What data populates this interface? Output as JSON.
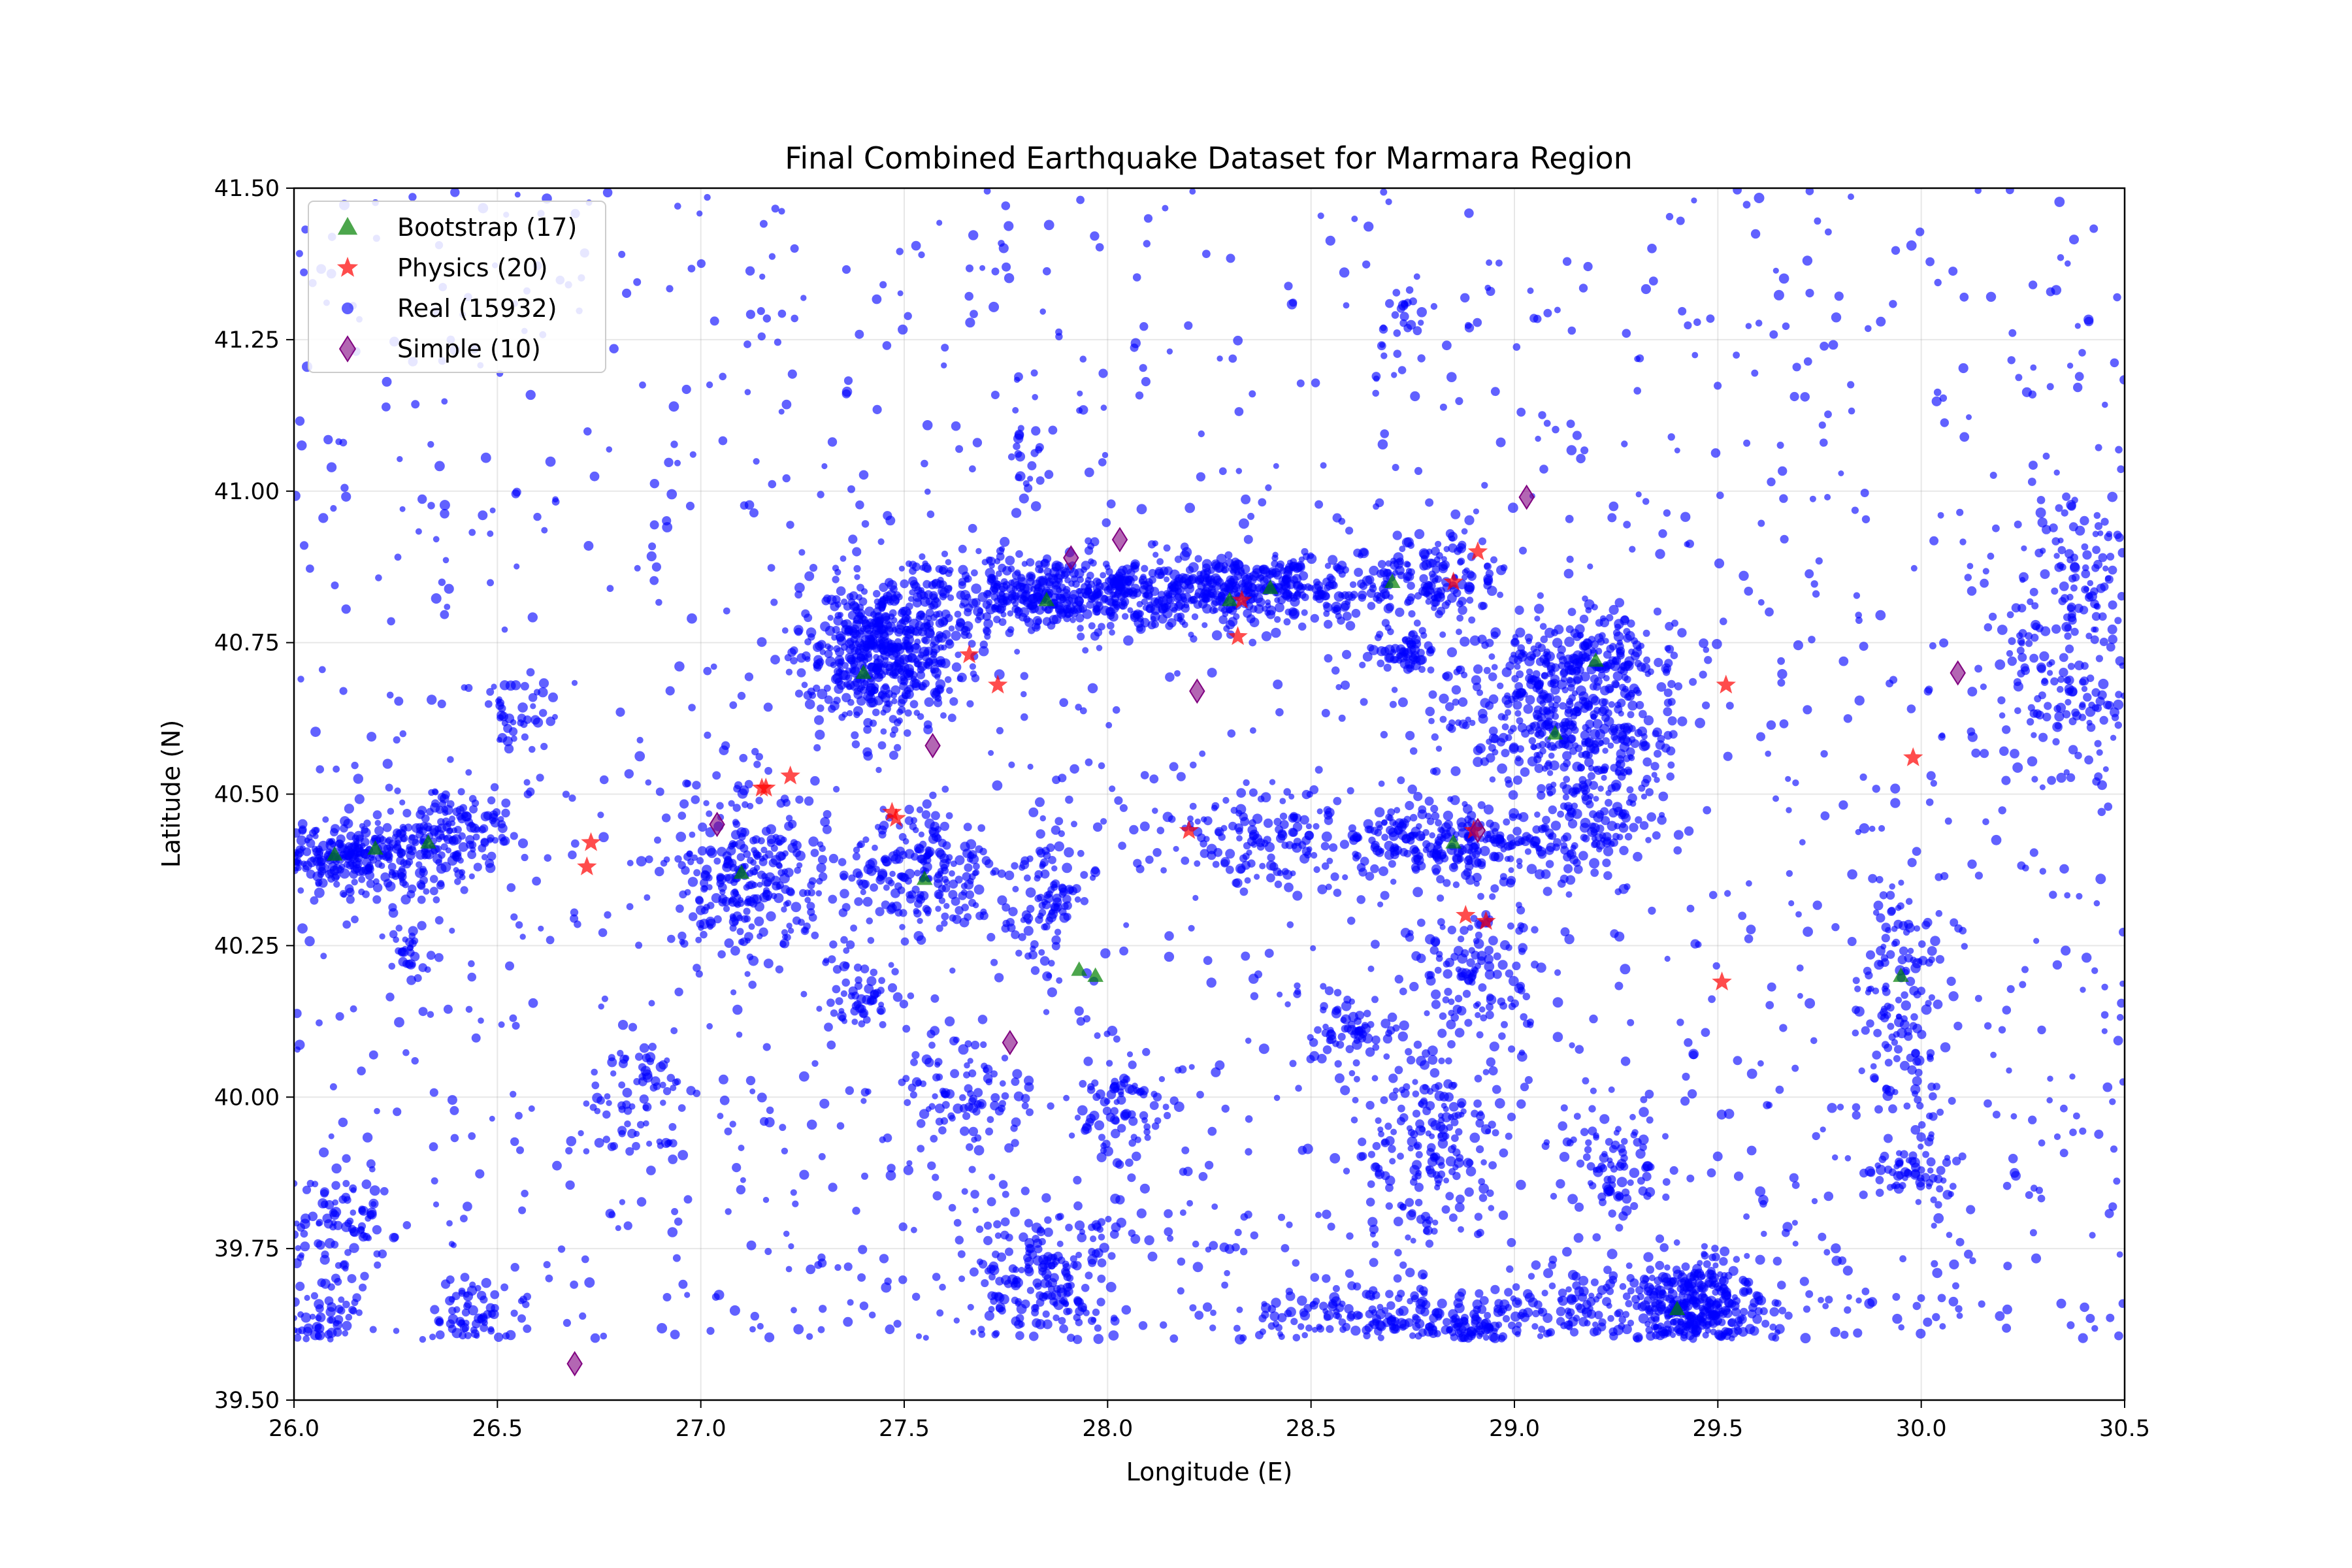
{
  "chart_data": {
    "type": "scatter",
    "title": "Final Combined Earthquake Dataset for Marmara Region",
    "xlabel": "Longitude (E)",
    "ylabel": "Latitude (N)",
    "xlim": [
      26.0,
      30.5
    ],
    "ylim": [
      39.5,
      41.5
    ],
    "xticks": [
      26.0,
      26.5,
      27.0,
      27.5,
      28.0,
      28.5,
      29.0,
      29.5,
      30.0,
      30.5
    ],
    "xtick_labels": [
      "26.0",
      "26.5",
      "27.0",
      "27.5",
      "28.0",
      "28.5",
      "29.0",
      "29.5",
      "30.0",
      "30.5"
    ],
    "yticks": [
      39.5,
      39.75,
      40.0,
      40.25,
      40.5,
      40.75,
      41.0,
      41.25,
      41.5
    ],
    "ytick_labels": [
      "39.50",
      "39.75",
      "40.00",
      "40.25",
      "40.50",
      "40.75",
      "41.00",
      "41.25",
      "41.50"
    ],
    "grid": true,
    "legend_position": "upper-left",
    "series": [
      {
        "name": "Real (15932)",
        "marker": "circle",
        "color": "#0000ff",
        "clusters": [
          {
            "x": 26.15,
            "y": 40.4,
            "sx": 0.12,
            "sy": 0.03,
            "n": 320
          },
          {
            "x": 26.4,
            "y": 40.44,
            "sx": 0.08,
            "sy": 0.04,
            "n": 120
          },
          {
            "x": 27.45,
            "y": 40.73,
            "sx": 0.1,
            "sy": 0.06,
            "n": 520
          },
          {
            "x": 27.85,
            "y": 40.83,
            "sx": 0.18,
            "sy": 0.03,
            "n": 450
          },
          {
            "x": 28.35,
            "y": 40.84,
            "sx": 0.18,
            "sy": 0.03,
            "n": 420
          },
          {
            "x": 28.8,
            "y": 40.85,
            "sx": 0.08,
            "sy": 0.04,
            "n": 140
          },
          {
            "x": 29.15,
            "y": 40.72,
            "sx": 0.14,
            "sy": 0.04,
            "n": 260
          },
          {
            "x": 29.1,
            "y": 40.61,
            "sx": 0.15,
            "sy": 0.04,
            "n": 260
          },
          {
            "x": 29.2,
            "y": 40.48,
            "sx": 0.07,
            "sy": 0.06,
            "n": 150
          },
          {
            "x": 28.85,
            "y": 40.42,
            "sx": 0.17,
            "sy": 0.03,
            "n": 280
          },
          {
            "x": 27.12,
            "y": 40.36,
            "sx": 0.1,
            "sy": 0.06,
            "n": 260
          },
          {
            "x": 27.55,
            "y": 40.37,
            "sx": 0.1,
            "sy": 0.05,
            "n": 200
          },
          {
            "x": 27.85,
            "y": 40.32,
            "sx": 0.05,
            "sy": 0.06,
            "n": 100
          },
          {
            "x": 29.45,
            "y": 39.65,
            "sx": 0.08,
            "sy": 0.04,
            "n": 380
          },
          {
            "x": 27.85,
            "y": 39.7,
            "sx": 0.09,
            "sy": 0.06,
            "n": 200
          },
          {
            "x": 28.8,
            "y": 39.92,
            "sx": 0.08,
            "sy": 0.08,
            "n": 180
          },
          {
            "x": 28.9,
            "y": 40.2,
            "sx": 0.08,
            "sy": 0.06,
            "n": 120
          },
          {
            "x": 28.65,
            "y": 39.63,
            "sx": 0.14,
            "sy": 0.03,
            "n": 160
          },
          {
            "x": 28.9,
            "y": 39.62,
            "sx": 0.06,
            "sy": 0.02,
            "n": 80
          },
          {
            "x": 29.15,
            "y": 39.65,
            "sx": 0.1,
            "sy": 0.04,
            "n": 110
          },
          {
            "x": 29.95,
            "y": 40.2,
            "sx": 0.05,
            "sy": 0.12,
            "n": 130
          },
          {
            "x": 30.35,
            "y": 40.68,
            "sx": 0.1,
            "sy": 0.1,
            "n": 150
          },
          {
            "x": 30.4,
            "y": 40.88,
            "sx": 0.06,
            "sy": 0.06,
            "n": 80
          },
          {
            "x": 30.0,
            "y": 39.88,
            "sx": 0.06,
            "sy": 0.03,
            "n": 60
          },
          {
            "x": 29.25,
            "y": 39.9,
            "sx": 0.07,
            "sy": 0.04,
            "n": 80
          },
          {
            "x": 26.1,
            "y": 39.8,
            "sx": 0.07,
            "sy": 0.05,
            "n": 90
          },
          {
            "x": 26.05,
            "y": 39.63,
            "sx": 0.06,
            "sy": 0.03,
            "n": 70
          },
          {
            "x": 26.42,
            "y": 39.63,
            "sx": 0.05,
            "sy": 0.03,
            "n": 70
          },
          {
            "x": 26.85,
            "y": 40.0,
            "sx": 0.06,
            "sy": 0.07,
            "n": 70
          },
          {
            "x": 28.05,
            "y": 39.98,
            "sx": 0.06,
            "sy": 0.04,
            "n": 80
          },
          {
            "x": 27.65,
            "y": 40.0,
            "sx": 0.07,
            "sy": 0.05,
            "n": 80
          },
          {
            "x": 28.6,
            "y": 40.1,
            "sx": 0.05,
            "sy": 0.03,
            "n": 60
          },
          {
            "x": 27.4,
            "y": 40.16,
            "sx": 0.05,
            "sy": 0.03,
            "n": 50
          },
          {
            "x": 28.35,
            "y": 40.42,
            "sx": 0.1,
            "sy": 0.04,
            "n": 100
          },
          {
            "x": 28.73,
            "y": 40.74,
            "sx": 0.04,
            "sy": 0.02,
            "n": 50
          },
          {
            "x": 27.8,
            "y": 41.08,
            "sx": 0.03,
            "sy": 0.05,
            "n": 25
          },
          {
            "x": 28.72,
            "y": 41.27,
            "sx": 0.03,
            "sy": 0.04,
            "n": 25
          },
          {
            "x": 26.55,
            "y": 40.63,
            "sx": 0.05,
            "sy": 0.04,
            "n": 40
          },
          {
            "x": 26.28,
            "y": 40.25,
            "sx": 0.04,
            "sy": 0.03,
            "n": 30
          }
        ],
        "background_points": 1800,
        "background_xrange": [
          26.0,
          30.5
        ],
        "background_yrange": [
          39.6,
          41.5
        ]
      },
      {
        "name": "Physics (20)",
        "marker": "star",
        "color": "#ff0000",
        "points": [
          [
            27.16,
            40.51
          ],
          [
            27.22,
            40.53
          ],
          [
            26.73,
            40.42
          ],
          [
            26.72,
            40.38
          ],
          [
            27.47,
            40.47
          ],
          [
            27.66,
            40.73
          ],
          [
            27.73,
            40.68
          ],
          [
            28.2,
            40.44
          ],
          [
            28.32,
            40.76
          ],
          [
            28.85,
            40.85
          ],
          [
            28.91,
            40.9
          ],
          [
            28.88,
            40.3
          ],
          [
            28.93,
            40.29
          ],
          [
            29.52,
            40.68
          ],
          [
            29.51,
            40.19
          ],
          [
            29.98,
            40.56
          ],
          [
            28.33,
            40.82
          ],
          [
            27.15,
            40.51
          ],
          [
            27.48,
            40.46
          ],
          [
            28.9,
            40.44
          ]
        ]
      },
      {
        "name": "Simple (10)",
        "marker": "diamond",
        "color": "#800080",
        "points": [
          [
            26.69,
            39.56
          ],
          [
            27.04,
            40.45
          ],
          [
            27.57,
            40.58
          ],
          [
            27.76,
            40.09
          ],
          [
            27.91,
            40.89
          ],
          [
            28.03,
            40.92
          ],
          [
            28.22,
            40.67
          ],
          [
            29.03,
            40.99
          ],
          [
            28.91,
            40.44
          ],
          [
            30.09,
            40.7
          ]
        ]
      },
      {
        "name": "Bootstrap (17)",
        "marker": "triangle",
        "color": "#008000",
        "points": [
          [
            26.33,
            40.42
          ],
          [
            27.97,
            40.2
          ],
          [
            27.93,
            40.21
          ],
          [
            28.3,
            40.82
          ],
          [
            26.1,
            40.4
          ],
          [
            26.2,
            40.41
          ],
          [
            27.4,
            40.7
          ],
          [
            28.7,
            40.85
          ],
          [
            29.1,
            40.6
          ],
          [
            29.4,
            39.65
          ],
          [
            27.85,
            40.82
          ],
          [
            28.4,
            40.84
          ],
          [
            29.2,
            40.72
          ],
          [
            27.1,
            40.37
          ],
          [
            27.55,
            40.36
          ],
          [
            28.85,
            40.42
          ],
          [
            29.95,
            40.2
          ]
        ]
      }
    ],
    "legend": [
      {
        "label": "Bootstrap (17)",
        "marker": "triangle",
        "color": "#008000"
      },
      {
        "label": "Physics (20)",
        "marker": "star",
        "color": "#ff0000"
      },
      {
        "label": "Real (15932)",
        "marker": "circle",
        "color": "#0000ff"
      },
      {
        "label": "Simple (10)",
        "marker": "diamond",
        "color": "#800080"
      }
    ]
  }
}
